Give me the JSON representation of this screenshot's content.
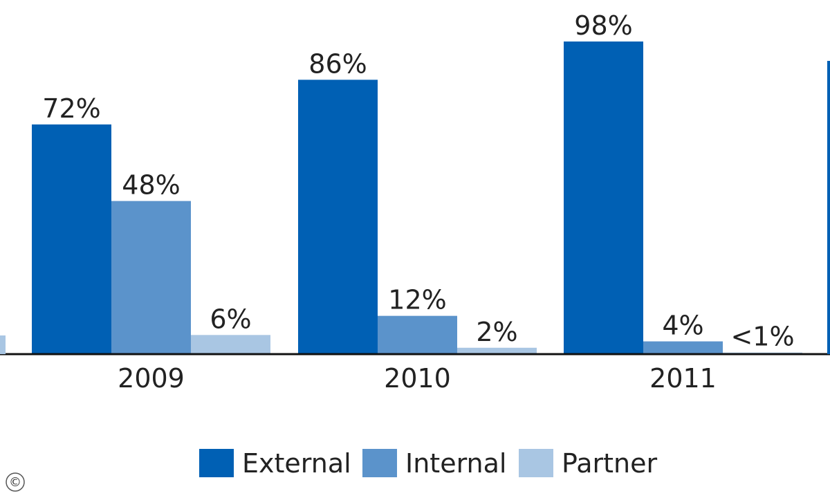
{
  "chart_data": {
    "type": "bar",
    "categories": [
      "2009",
      "2010",
      "2011"
    ],
    "series": [
      {
        "name": "External",
        "color": "#0060b4",
        "values": [
          72,
          86,
          98
        ],
        "labels": [
          "72%",
          "86%",
          "98%"
        ]
      },
      {
        "name": "Internal",
        "color": "#5b93cb",
        "values": [
          48,
          12,
          4
        ],
        "labels": [
          "48%",
          "12%",
          "4%"
        ]
      },
      {
        "name": "Partner",
        "color": "#a9c6e3",
        "values": [
          6,
          2,
          0.5
        ],
        "labels": [
          "6%",
          "2%",
          "<1%"
        ]
      }
    ],
    "ylim": [
      0,
      100
    ],
    "grid": false,
    "legend_position": "bottom"
  },
  "copyright_symbol": "©"
}
